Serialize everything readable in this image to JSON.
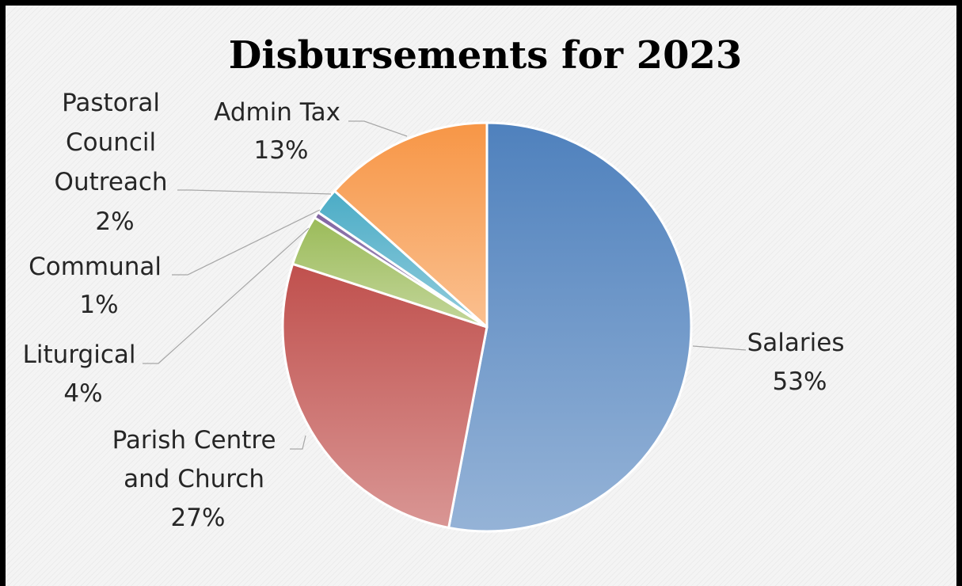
{
  "chart_data": {
    "type": "pie",
    "title": "Disbursements for 2023",
    "slices": [
      {
        "label": "Salaries",
        "pct_label": "53%",
        "value": 53,
        "color": "#4f81bd",
        "color_light": "#95b3d7"
      },
      {
        "label": "Parish Centre and Church",
        "pct_label": "27%",
        "value": 27,
        "color": "#c0504d",
        "color_light": "#d99694"
      },
      {
        "label": "Liturgical",
        "pct_label": "4%",
        "value": 4,
        "color": "#9bbb59",
        "color_light": "#c3d69b"
      },
      {
        "label": "Communal",
        "pct_label": "1%",
        "value": 0.5,
        "color": "#8064a2",
        "color_light": "#b3a2c7"
      },
      {
        "label": "Pastoral Council Outreach",
        "pct_label": "2%",
        "value": 2.1,
        "color": "#4bacc6",
        "color_light": "#93cddd"
      },
      {
        "label": "Admin Tax",
        "pct_label": "13%",
        "value": 13.4,
        "color": "#f79646",
        "color_light": "#fac090"
      }
    ],
    "legend": "none",
    "data_labels": "outside with leader lines"
  }
}
